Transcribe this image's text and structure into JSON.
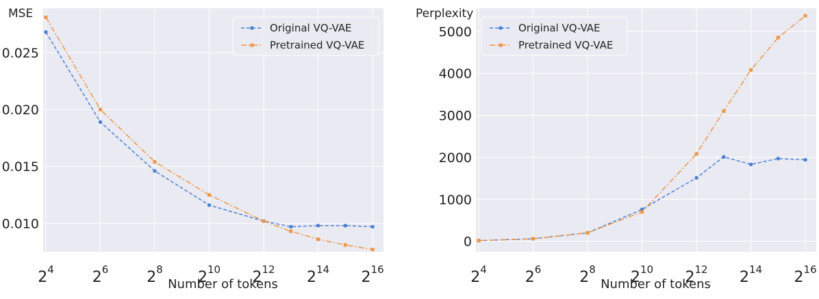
{
  "chart_data": [
    {
      "type": "line",
      "title": "",
      "ylabel": "MSE",
      "xlabel": "Number of tokens",
      "x": [
        4,
        6,
        8,
        10,
        12,
        13,
        14,
        15,
        16
      ],
      "xlim": [
        3.9,
        16.4
      ],
      "xticks": [
        4,
        6,
        8,
        10,
        12,
        14,
        16
      ],
      "xtick_base": "2",
      "ylim": [
        0.0075,
        0.0289
      ],
      "yticks": [
        0.01,
        0.015,
        0.02,
        0.025
      ],
      "ytick_labels": [
        "0.010",
        "0.015",
        "0.020",
        "0.025"
      ],
      "grid": true,
      "legend": "top-right",
      "series": [
        {
          "name": "Original VQ-VAE",
          "color": "#4a7fd4",
          "marker": "circle",
          "style": "dashed",
          "values": [
            0.0268,
            0.0189,
            0.0146,
            0.0116,
            0.0102,
            0.0097,
            0.0098,
            0.0098,
            0.0097
          ]
        },
        {
          "name": "Pretrained VQ-VAE",
          "color": "#ed9645",
          "marker": "square",
          "style": "dashdot",
          "values": [
            0.0281,
            0.02,
            0.0154,
            0.0125,
            0.0102,
            0.0093,
            0.0086,
            0.0081,
            0.0077
          ]
        }
      ]
    },
    {
      "type": "line",
      "title": "",
      "ylabel": "Perplexity",
      "xlabel": "Number of tokens",
      "x": [
        4,
        6,
        8,
        10,
        12,
        13,
        14,
        15,
        16
      ],
      "xlim": [
        3.9,
        16.4
      ],
      "xticks": [
        4,
        6,
        8,
        10,
        12,
        14,
        16
      ],
      "xtick_base": "2",
      "ylim": [
        -250,
        5550
      ],
      "yticks": [
        0,
        1000,
        2000,
        3000,
        4000,
        5000
      ],
      "ytick_labels": [
        "0",
        "1000",
        "2000",
        "3000",
        "4000",
        "5000"
      ],
      "grid": true,
      "legend": "top-left",
      "series": [
        {
          "name": "Original VQ-VAE",
          "color": "#4a7fd4",
          "marker": "circle",
          "style": "dashed",
          "values": [
            16,
            60,
            200,
            760,
            1510,
            2010,
            1830,
            1970,
            1940
          ]
        },
        {
          "name": "Pretrained VQ-VAE",
          "color": "#ed9645",
          "marker": "square",
          "style": "dashdot",
          "values": [
            16,
            60,
            200,
            700,
            2080,
            3100,
            4080,
            4850,
            5370
          ]
        }
      ]
    }
  ]
}
